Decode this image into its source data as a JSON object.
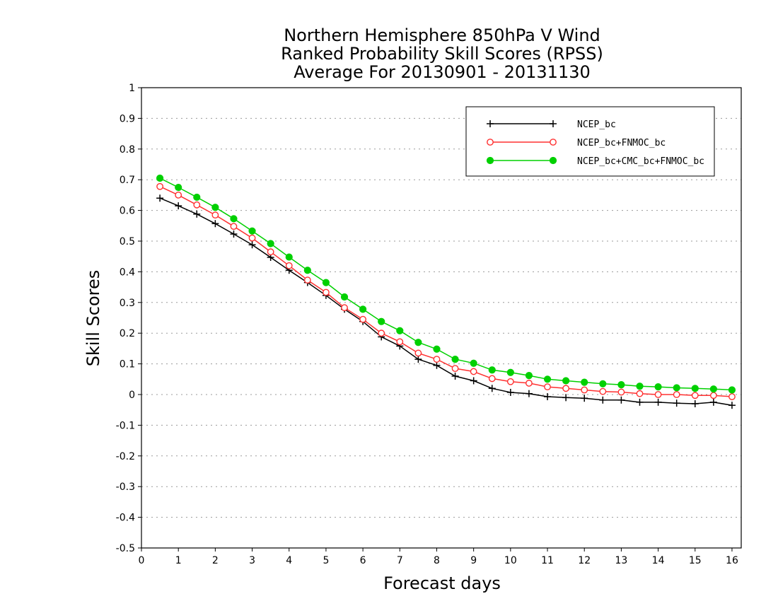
{
  "chart_data": {
    "type": "line",
    "title": [
      "Northern Hemisphere 850hPa V Wind",
      "Ranked Probability Skill Scores (RPSS)",
      "Average For 20130901 - 20131130"
    ],
    "xlabel": "Forecast days",
    "ylabel": "Skill Scores",
    "xlim": [
      0,
      16.25
    ],
    "ylim": [
      -0.5,
      1.0
    ],
    "xticks": [
      "0",
      "1",
      "2",
      "3",
      "4",
      "5",
      "6",
      "7",
      "8",
      "9",
      "10",
      "11",
      "12",
      "13",
      "14",
      "15",
      "16"
    ],
    "yticks": [
      "1",
      "0.9",
      "0.8",
      "0.7",
      "0.6",
      "0.5",
      "0.4",
      "0.3",
      "0.2",
      "0.1",
      "0",
      "-0.1",
      "-0.2",
      "-0.3",
      "-0.4",
      "-0.5"
    ],
    "grid": "horizontal-dotted",
    "legend_placement": "top-right",
    "x": [
      0.5,
      1,
      1.5,
      2,
      2.5,
      3,
      3.5,
      4,
      4.5,
      5,
      5.5,
      6,
      6.5,
      7,
      7.5,
      8,
      8.5,
      9,
      9.5,
      10,
      10.5,
      11,
      11.5,
      12,
      12.5,
      13,
      13.5,
      14,
      14.5,
      15,
      15.5,
      16
    ],
    "series": [
      {
        "name": "NCEP_bc",
        "color": "#000000",
        "marker": "plus",
        "values": [
          0.64,
          0.615,
          0.588,
          0.557,
          0.523,
          0.488,
          0.447,
          0.405,
          0.365,
          0.323,
          0.278,
          0.238,
          0.188,
          0.158,
          0.115,
          0.095,
          0.06,
          0.045,
          0.02,
          0.007,
          0.003,
          -0.007,
          -0.01,
          -0.012,
          -0.018,
          -0.018,
          -0.025,
          -0.025,
          -0.028,
          -0.03,
          -0.025,
          -0.035
        ]
      },
      {
        "name": "NCEP_bc+FNMOC_bc",
        "color": "#ff3030",
        "marker": "open-circle",
        "values": [
          0.678,
          0.65,
          0.618,
          0.585,
          0.548,
          0.51,
          0.465,
          0.42,
          0.373,
          0.333,
          0.283,
          0.245,
          0.2,
          0.172,
          0.135,
          0.115,
          0.085,
          0.075,
          0.052,
          0.042,
          0.037,
          0.025,
          0.02,
          0.015,
          0.01,
          0.008,
          0.003,
          0.0,
          0.0,
          -0.003,
          -0.003,
          -0.007
        ]
      },
      {
        "name": "NCEP_bc+CMC_bc+FNMOC_bc",
        "color": "#00d000",
        "marker": "filled-circle",
        "values": [
          0.705,
          0.675,
          0.643,
          0.61,
          0.573,
          0.533,
          0.492,
          0.448,
          0.405,
          0.365,
          0.318,
          0.278,
          0.238,
          0.208,
          0.17,
          0.148,
          0.115,
          0.102,
          0.08,
          0.072,
          0.062,
          0.05,
          0.045,
          0.04,
          0.035,
          0.032,
          0.027,
          0.025,
          0.022,
          0.02,
          0.018,
          0.015
        ]
      }
    ]
  }
}
